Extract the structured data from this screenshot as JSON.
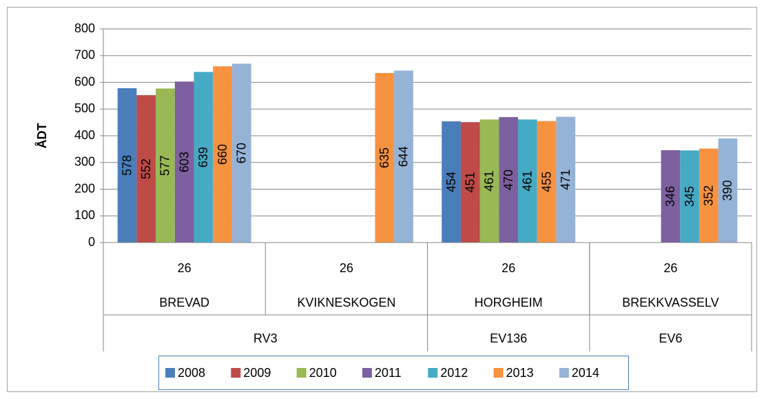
{
  "chart_data": {
    "type": "bar",
    "y_label": "ÅDT",
    "categories": [
      "BREVAD",
      "KVIKNESKOGEN",
      "HORGHEIM",
      "BREKKVASSELV"
    ],
    "category_codes": [
      "26",
      "26",
      "26",
      "26"
    ],
    "category_groups": [
      {
        "label": "RV3",
        "count": 2
      },
      {
        "label": "EV136",
        "count": 1
      },
      {
        "label": "EV6",
        "count": 1
      }
    ],
    "series": [
      {
        "name": "2008",
        "color": "#4a7ebb",
        "values": [
          578,
          null,
          454,
          null
        ]
      },
      {
        "name": "2009",
        "color": "#be4b48",
        "values": [
          552,
          null,
          451,
          null
        ]
      },
      {
        "name": "2010",
        "color": "#98b954",
        "values": [
          577,
          null,
          461,
          null
        ]
      },
      {
        "name": "2011",
        "color": "#7d60a0",
        "values": [
          603,
          null,
          470,
          346
        ]
      },
      {
        "name": "2012",
        "color": "#46aac5",
        "values": [
          639,
          null,
          461,
          345
        ]
      },
      {
        "name": "2013",
        "color": "#f69240",
        "values": [
          660,
          635,
          455,
          352
        ]
      },
      {
        "name": "2014",
        "color": "#95b3d7",
        "values": [
          670,
          644,
          471,
          390
        ]
      }
    ],
    "ylim": [
      0,
      800
    ],
    "yticks": [
      0,
      100,
      200,
      300,
      400,
      500,
      600,
      700,
      800
    ],
    "grid": true,
    "legend": "bottom"
  }
}
